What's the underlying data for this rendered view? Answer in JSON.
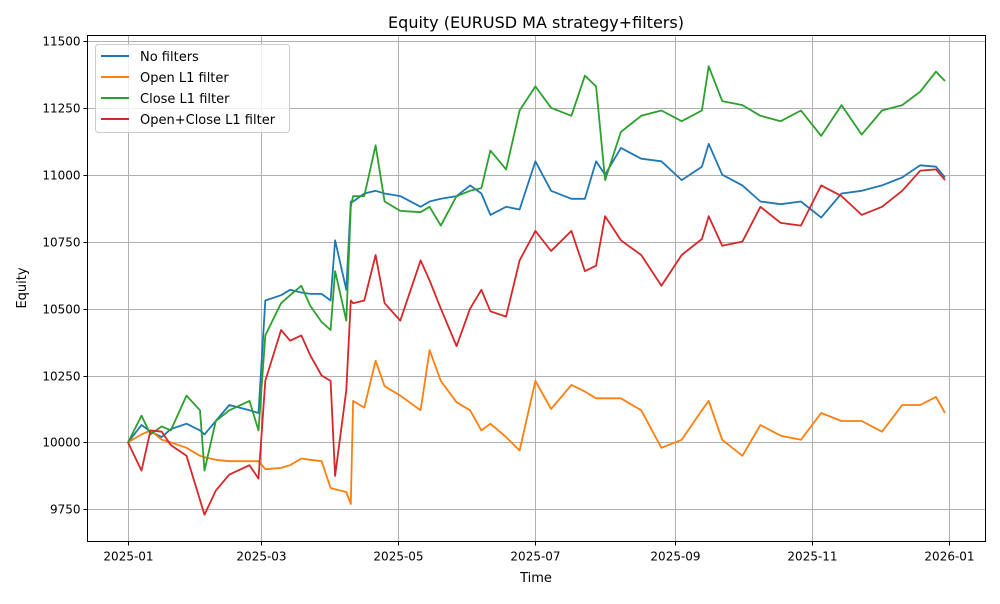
{
  "chart_data": {
    "type": "line",
    "title": "Equity (EURUSD MA strategy+filters)",
    "xlabel": "Time",
    "ylabel": "Equity",
    "xlim": [
      "2024-12-14",
      "2026-01-17"
    ],
    "ylim": [
      9630,
      11520
    ],
    "grid": true,
    "legend_position": "top-left",
    "x_ticks": [
      "2025-01",
      "2025-03",
      "2025-05",
      "2025-07",
      "2025-09",
      "2025-11",
      "2026-01"
    ],
    "y_ticks": [
      9750,
      10000,
      10250,
      10500,
      10750,
      11000,
      11250,
      11500
    ],
    "x": [
      "2025-01-01",
      "2025-01-07",
      "2025-01-11",
      "2025-01-16",
      "2025-01-20",
      "2025-01-27",
      "2025-02-02",
      "2025-02-04",
      "2025-02-09",
      "2025-02-15",
      "2025-02-24",
      "2025-02-28",
      "2025-03-03",
      "2025-03-10",
      "2025-03-14",
      "2025-03-19",
      "2025-03-23",
      "2025-03-28",
      "2025-04-01",
      "2025-04-03",
      "2025-04-08",
      "2025-04-10",
      "2025-04-11",
      "2025-04-16",
      "2025-04-21",
      "2025-04-25",
      "2025-05-02",
      "2025-05-11",
      "2025-05-15",
      "2025-05-20",
      "2025-05-27",
      "2025-06-02",
      "2025-06-07",
      "2025-06-11",
      "2025-06-18",
      "2025-06-24",
      "2025-07-01",
      "2025-07-08",
      "2025-07-17",
      "2025-07-23",
      "2025-07-28",
      "2025-08-01",
      "2025-08-08",
      "2025-08-17",
      "2025-08-26",
      "2025-09-04",
      "2025-09-13",
      "2025-09-16",
      "2025-09-22",
      "2025-10-01",
      "2025-10-09",
      "2025-10-18",
      "2025-10-27",
      "2025-11-05",
      "2025-11-14",
      "2025-11-23",
      "2025-12-02",
      "2025-12-11",
      "2025-12-19",
      "2025-12-26",
      "2025-12-30"
    ],
    "series": [
      {
        "name": "No filters",
        "color": "#1f77b4",
        "values": [
          10000,
          10065,
          10040,
          10020,
          10050,
          10070,
          10045,
          10030,
          10080,
          10140,
          10120,
          10110,
          10530,
          10550,
          10570,
          10560,
          10555,
          10555,
          10530,
          10755,
          10570,
          10900,
          10900,
          10930,
          10940,
          10930,
          10920,
          10880,
          10900,
          10910,
          10920,
          10960,
          10930,
          10850,
          10880,
          10870,
          11050,
          10940,
          10910,
          10910,
          11050,
          11000,
          11100,
          11060,
          11050,
          10980,
          11030,
          11115,
          11000,
          10960,
          10900,
          10890,
          10900,
          10840,
          10930,
          10940,
          10960,
          10990,
          11035,
          11030,
          10990
        ]
      },
      {
        "name": "Open L1 filter",
        "color": "#ff7f0e",
        "values": [
          10000,
          10030,
          10045,
          10010,
          10000,
          9980,
          9950,
          9945,
          9935,
          9930,
          9930,
          9930,
          9900,
          9905,
          9915,
          9940,
          9935,
          9930,
          9830,
          9825,
          9815,
          9770,
          10155,
          10130,
          10305,
          10210,
          10175,
          10120,
          10345,
          10230,
          10150,
          10120,
          10045,
          10070,
          10020,
          9970,
          10230,
          10125,
          10215,
          10190,
          10165,
          10165,
          10165,
          10120,
          9980,
          10010,
          10120,
          10155,
          10010,
          9950,
          10065,
          10025,
          10010,
          10110,
          10080,
          10080,
          10040,
          10140,
          10140,
          10170,
          10110
        ]
      },
      {
        "name": "Close L1 filter",
        "color": "#2ca02c",
        "values": [
          10000,
          10100,
          10030,
          10060,
          10045,
          10175,
          10120,
          9895,
          10080,
          10120,
          10155,
          10045,
          10400,
          10520,
          10550,
          10585,
          10510,
          10450,
          10420,
          10640,
          10455,
          10880,
          10920,
          10920,
          11110,
          10900,
          10865,
          10860,
          10880,
          10810,
          10920,
          10940,
          10950,
          11090,
          11020,
          11240,
          11330,
          11250,
          11220,
          11370,
          11330,
          10980,
          11160,
          11220,
          11240,
          11200,
          11240,
          11405,
          11275,
          11260,
          11220,
          11200,
          11240,
          11145,
          11260,
          11150,
          11240,
          11260,
          11310,
          11385,
          11350
        ]
      },
      {
        "name": "Open+Close L1 filter",
        "color": "#d62728",
        "values": [
          10000,
          9895,
          10045,
          10040,
          9990,
          9950,
          9785,
          9730,
          9820,
          9880,
          9915,
          9865,
          10230,
          10420,
          10380,
          10400,
          10325,
          10250,
          10230,
          9875,
          10195,
          10530,
          10520,
          10530,
          10700,
          10520,
          10455,
          10680,
          10605,
          10500,
          10360,
          10500,
          10570,
          10490,
          10470,
          10680,
          10790,
          10715,
          10790,
          10640,
          10660,
          10845,
          10755,
          10700,
          10585,
          10700,
          10760,
          10845,
          10735,
          10750,
          10880,
          10820,
          10810,
          10960,
          10920,
          10850,
          10880,
          10940,
          11015,
          11020,
          10980
        ]
      }
    ]
  }
}
